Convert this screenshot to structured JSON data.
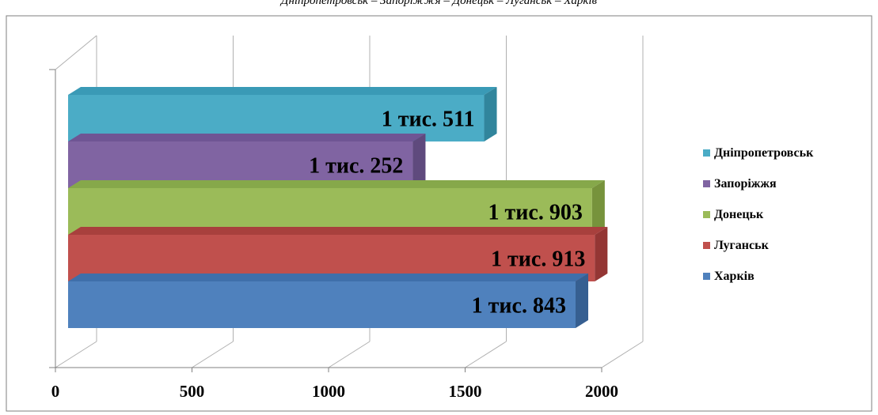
{
  "caption": "Дніпропетровськ – Запоріжжя – Донецьк – Луганськ – Харків",
  "chart_data": {
    "type": "bar",
    "orientation": "horizontal",
    "style": "3d",
    "categories": [
      "Дніпропетровськ",
      "Запоріжжя",
      "Донецьк",
      "Луганськ",
      "Харків"
    ],
    "values": [
      1511,
      1252,
      1903,
      1913,
      1843
    ],
    "data_labels": [
      "1 тис. 511",
      "1 тис. 252",
      "1 тис. 903",
      "1 тис. 913",
      "1 тис. 843"
    ],
    "colors": [
      "#4bacc6",
      "#8064a2",
      "#9bbb59",
      "#c0504d",
      "#4f81bd"
    ],
    "side_colors": [
      "#31859c",
      "#5f4a7d",
      "#77933c",
      "#943634",
      "#365f91"
    ],
    "top_colors": [
      "#3a9ab6",
      "#6f5594",
      "#86a84a",
      "#a8403d",
      "#3f6faa"
    ],
    "xlim": [
      0,
      2000
    ],
    "xticks": [
      "0",
      "500",
      "1000",
      "1500",
      "2000"
    ],
    "grid": true,
    "legend_position": "right",
    "legend": [
      "Дніпропетровськ",
      "Запоріжжя",
      "Донецьк",
      "Луганськ",
      "Харків"
    ]
  }
}
